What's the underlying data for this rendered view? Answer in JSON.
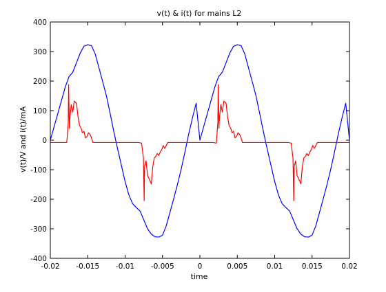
{
  "chart_data": {
    "type": "line",
    "title": "v(t) & i(t) for   mains L2",
    "xlabel": "time",
    "ylabel": "v(t)/V  and  i(t)/mA",
    "xlim": [
      -0.02,
      0.02
    ],
    "ylim": [
      -400,
      400
    ],
    "xticks": [
      -0.02,
      -0.015,
      -0.01,
      -0.005,
      0,
      0.005,
      0.01,
      0.015,
      0.02
    ],
    "xtick_labels": [
      "-0.02",
      "-0.015",
      "-0.01",
      "-0.005",
      "0",
      "0.005",
      "0.01",
      "0.015",
      "0.02"
    ],
    "yticks": [
      -400,
      -300,
      -200,
      -100,
      0,
      100,
      200,
      300,
      400
    ],
    "ytick_labels": [
      "-400",
      "-300",
      "-200",
      "-100",
      "0",
      "100",
      "200",
      "300",
      "400"
    ],
    "grid": false,
    "box": true,
    "series": [
      {
        "color": "#0000ff",
        "x": [
          -0.02,
          -0.0195,
          -0.019,
          -0.0185,
          -0.018,
          -0.0175,
          -0.017,
          -0.0165,
          -0.016,
          -0.0155,
          -0.015,
          -0.0145,
          -0.014,
          -0.0135,
          -0.013,
          -0.0125,
          -0.012,
          -0.0115,
          -0.011,
          -0.0105,
          -0.01,
          -0.0095,
          -0.009,
          -0.0085,
          -0.008,
          -0.0075,
          -0.007,
          -0.0065,
          -0.006,
          -0.0055,
          -0.005,
          -0.0045,
          -0.004,
          -0.0035,
          -0.003,
          -0.0025,
          -0.002,
          -0.0015,
          -0.001,
          -0.0005,
          0,
          0.0005,
          0.001,
          0.0015,
          0.002,
          0.0025,
          0.003,
          0.0035,
          0.004,
          0.0045,
          0.005,
          0.0055,
          0.006,
          0.0065,
          0.007,
          0.0075,
          0.008,
          0.0085,
          0.009,
          0.0095,
          0.01,
          0.0105,
          0.011,
          0.0115,
          0.012,
          0.0125,
          0.013,
          0.0135,
          0.014,
          0.0145,
          0.015,
          0.0155,
          0.016,
          0.0165,
          0.017,
          0.0175,
          0.018,
          0.0185,
          0.019,
          0.0195,
          0.02
        ],
        "values": [
          0,
          45,
          90,
          135,
          180,
          215,
          230,
          262,
          295,
          318,
          323,
          320,
          292,
          245,
          198,
          150,
          90,
          28,
          -30,
          -85,
          -140,
          -185,
          -215,
          -228,
          -240,
          -270,
          -300,
          -318,
          -327,
          -328,
          -322,
          -290,
          -244,
          -198,
          -150,
          -98,
          -40,
          20,
          75,
          125,
          0,
          45,
          90,
          135,
          180,
          215,
          230,
          262,
          295,
          318,
          323,
          320,
          292,
          245,
          198,
          150,
          90,
          28,
          -30,
          -85,
          -140,
          -185,
          -215,
          -228,
          -240,
          -270,
          -300,
          -318,
          -327,
          -328,
          -322,
          -290,
          -244,
          -198,
          -150,
          -98,
          -40,
          20,
          75,
          125,
          0
        ]
      },
      {
        "color": "#ff0000",
        "x": [
          -0.02,
          -0.0185,
          -0.0178,
          -0.0176,
          -0.01755,
          -0.01745,
          -0.0174,
          -0.0172,
          -0.017,
          -0.0168,
          -0.0165,
          -0.0163,
          -0.0161,
          -0.0159,
          -0.0157,
          -0.0155,
          -0.0153,
          -0.0151,
          -0.0149,
          -0.0147,
          -0.0145,
          -0.0143,
          -0.0142,
          -0.01,
          -0.0082,
          -0.0078,
          -0.00755,
          -0.00745,
          -0.0074,
          -0.0072,
          -0.007,
          -0.0068,
          -0.0065,
          -0.0063,
          -0.0061,
          -0.0059,
          -0.0057,
          -0.0055,
          -0.0053,
          -0.0051,
          -0.0049,
          -0.0047,
          -0.0045,
          -0.0043,
          -0.0042,
          0,
          0.0018,
          0.0022,
          0.0024,
          0.00245,
          0.00255,
          0.0026,
          0.0028,
          0.003,
          0.0032,
          0.0035,
          0.0037,
          0.0039,
          0.0041,
          0.0043,
          0.0045,
          0.0047,
          0.0049,
          0.0051,
          0.0053,
          0.0055,
          0.0057,
          0.0058,
          0.01,
          0.0118,
          0.0122,
          0.01245,
          0.01255,
          0.0126,
          0.0128,
          0.013,
          0.0132,
          0.0135,
          0.0137,
          0.0139,
          0.0141,
          0.0143,
          0.0145,
          0.0147,
          0.0149,
          0.0151,
          0.0153,
          0.0155,
          0.0157,
          0.0158,
          0.02
        ],
        "values": [
          -8,
          -8,
          -8,
          60,
          188,
          40,
          70,
          120,
          95,
          132,
          125,
          80,
          50,
          42,
          25,
          30,
          8,
          12,
          25,
          20,
          8,
          -8,
          -8,
          -8,
          -8,
          -10,
          -60,
          -205,
          -90,
          -70,
          -120,
          -130,
          -148,
          -90,
          -60,
          -55,
          -45,
          -52,
          -40,
          -32,
          -18,
          -28,
          -18,
          -8,
          -8,
          -8,
          -8,
          -10,
          60,
          188,
          40,
          70,
          120,
          95,
          132,
          125,
          80,
          50,
          42,
          25,
          30,
          8,
          12,
          25,
          20,
          8,
          -8,
          -8,
          -8,
          -8,
          -10,
          -60,
          -205,
          -90,
          -70,
          -120,
          -130,
          -148,
          -90,
          -60,
          -55,
          -45,
          -52,
          -40,
          -32,
          -18,
          -28,
          -18,
          -8,
          -8,
          -8
        ]
      }
    ]
  }
}
